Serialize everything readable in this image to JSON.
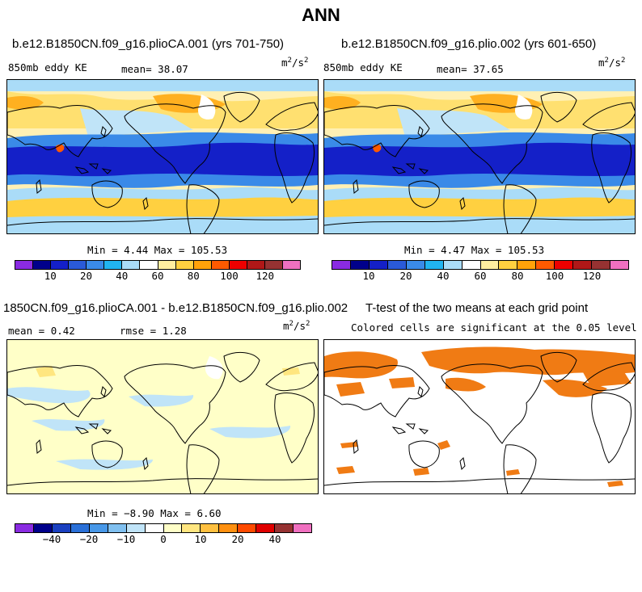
{
  "figure_title": "ANN",
  "panels": {
    "p1": {
      "title": "b.e12.B1850CN.f09_g16.plioCA.001 (yrs 701-750)",
      "variable": "850mb eddy KE",
      "mean_label": "mean=",
      "mean_value": "38.07",
      "units_base": "m",
      "units_exp1": "2",
      "units_mid": "/s",
      "units_exp2": "2",
      "minmax": "Min =   4.44 Max = 105.53"
    },
    "p2": {
      "title": "b.e12.B1850CN.f09_g16.plio.002 (yrs 601-650)",
      "variable": "850mb eddy KE",
      "mean_label": "mean=",
      "mean_value": "37.65",
      "units_base": "m",
      "units_exp1": "2",
      "units_mid": "/s",
      "units_exp2": "2",
      "minmax": "Min =   4.47 Max = 105.53"
    },
    "p3": {
      "title": "1850CN.f09_g16.plioCA.001 - b.e12.B1850CN.f09_g16.plio.002",
      "mean_label": "mean =",
      "mean_value": "0.42",
      "rmse_label": "rmse =",
      "rmse_value": "1.28",
      "units_base": "m",
      "units_exp1": "2",
      "units_mid": "/s",
      "units_exp2": "2",
      "minmax": "Min = −8.90 Max =   6.60"
    },
    "p4": {
      "title": "T-test of the two means at each grid point",
      "subtitle": "Colored cells are significant at the 0.05 level",
      "sig_color": "#f07b14"
    }
  },
  "colorbar_top": {
    "colors": [
      "#8a2be2",
      "#00008b",
      "#1420c8",
      "#2a5ad8",
      "#3a8ae8",
      "#21b4f0",
      "#aadcf8",
      "#ffffff",
      "#ffeea0",
      "#ffd040",
      "#ffa20a",
      "#ff5a00",
      "#ee0000",
      "#b01818",
      "#963232",
      "#f070c0"
    ],
    "labels": [
      "10",
      "20",
      "40",
      "60",
      "80",
      "100",
      "120"
    ]
  },
  "colorbar_bottom": {
    "colors": [
      "#8a2be2",
      "#00008b",
      "#1a40c0",
      "#2a70d8",
      "#4898e8",
      "#80c0f0",
      "#c0e4f8",
      "#ffffff",
      "#ffffc8",
      "#ffe680",
      "#ffc040",
      "#ff9010",
      "#ff4a00",
      "#e00000",
      "#963232",
      "#f070c0"
    ],
    "labels": [
      "−40",
      "−20",
      "−10",
      "0",
      "10",
      "20",
      "40"
    ]
  }
}
